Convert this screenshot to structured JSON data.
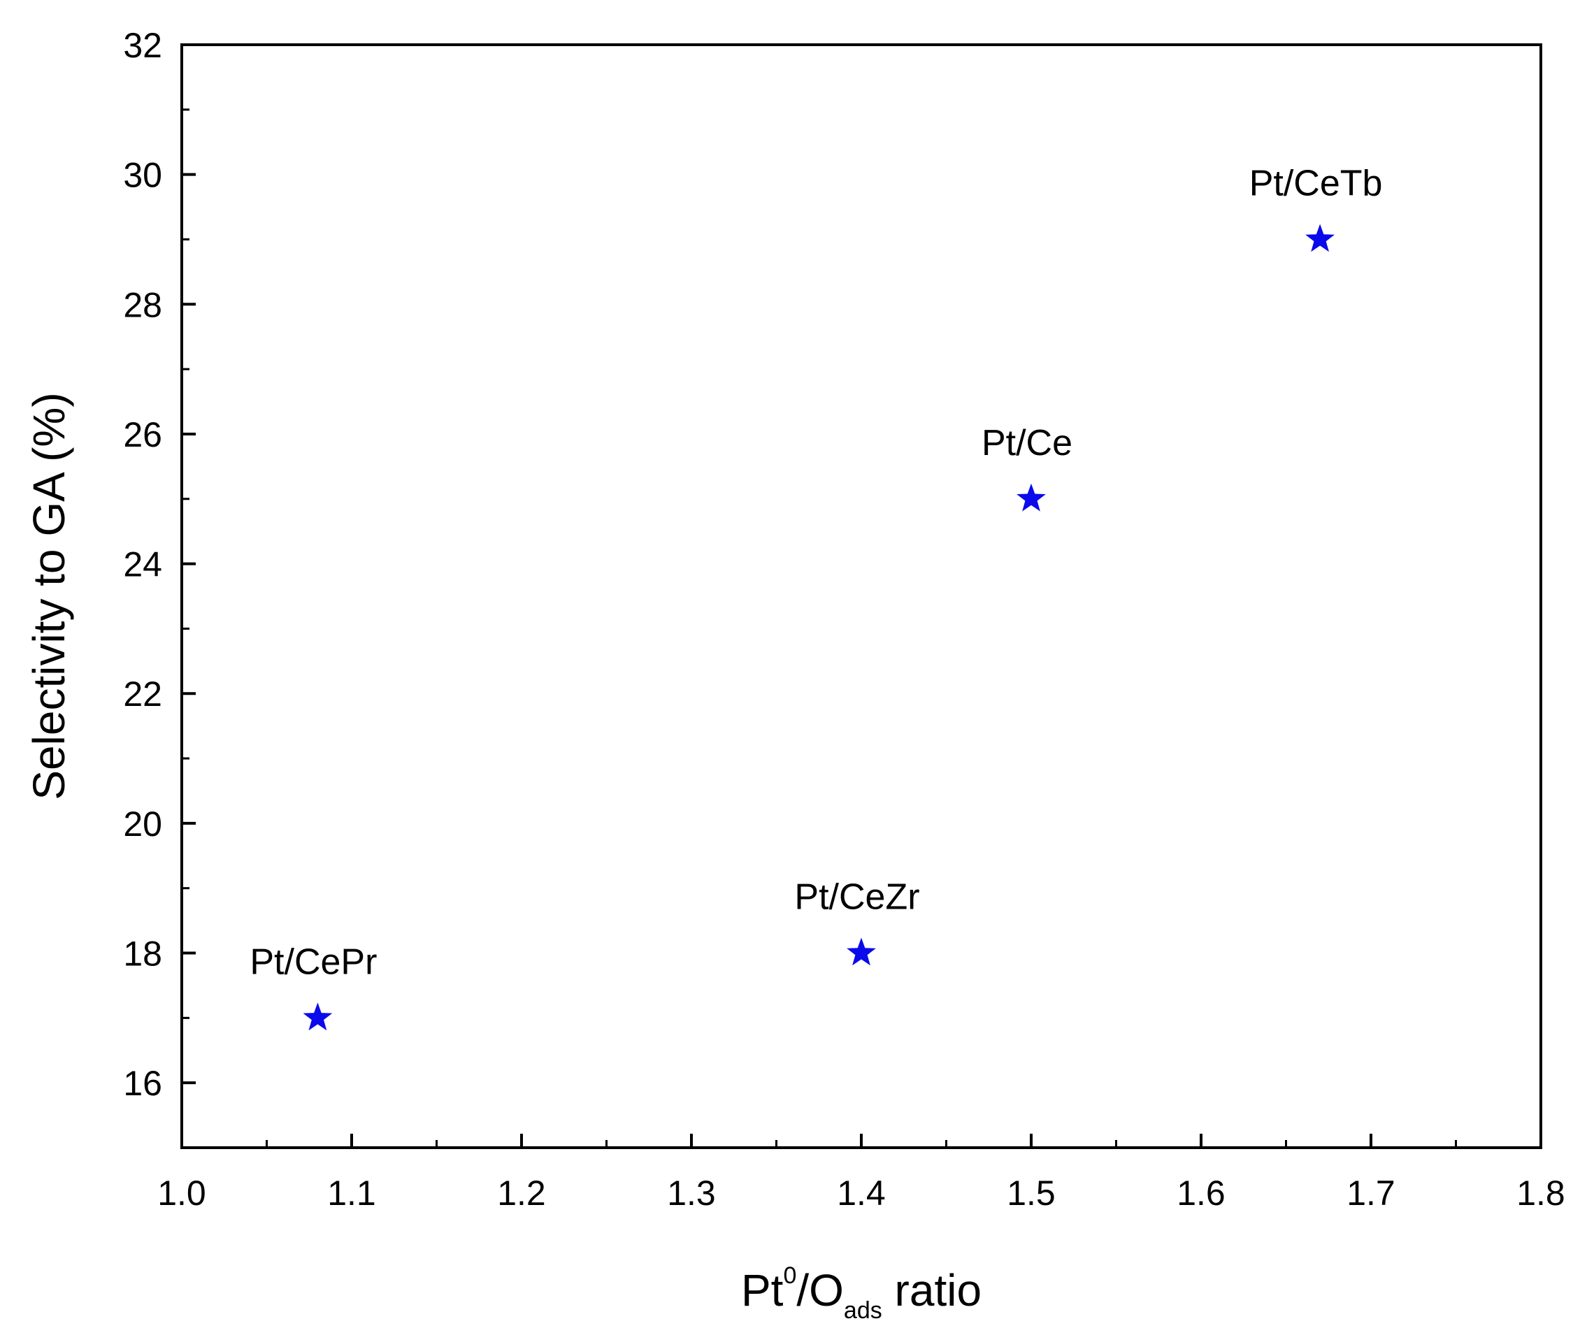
{
  "chart_data": {
    "type": "scatter",
    "title": "",
    "xlabel": {
      "base": "Pt",
      "sup": "0",
      "mid": "/O",
      "sub": "ads",
      "tail": " ratio"
    },
    "ylabel": "Selectivity to GA (%)",
    "xlim": [
      1.0,
      1.8
    ],
    "ylim": [
      15,
      32
    ],
    "x_major_ticks": [
      1.0,
      1.1,
      1.2,
      1.3,
      1.4,
      1.5,
      1.6,
      1.7,
      1.8
    ],
    "x_tick_labels": [
      "1.0",
      "1.1",
      "1.2",
      "1.3",
      "1.4",
      "1.5",
      "1.6",
      "1.7",
      "1.8"
    ],
    "y_major_ticks": [
      16,
      18,
      20,
      22,
      24,
      26,
      28,
      30,
      32
    ],
    "y_tick_labels": [
      "16",
      "18",
      "20",
      "22",
      "24",
      "26",
      "28",
      "30",
      "32"
    ],
    "grid": false,
    "marker": "star",
    "marker_color": "#0a0aeb",
    "points": [
      {
        "label": "Pt/CePr",
        "x": 1.08,
        "y": 17
      },
      {
        "label": "Pt/CeZr",
        "x": 1.4,
        "y": 18
      },
      {
        "label": "Pt/Ce",
        "x": 1.5,
        "y": 25
      },
      {
        "label": "Pt/CeTb",
        "x": 1.67,
        "y": 29
      }
    ]
  }
}
